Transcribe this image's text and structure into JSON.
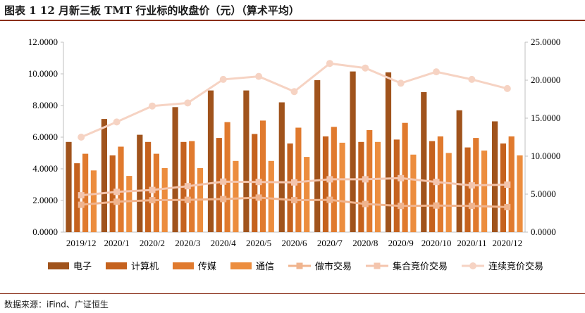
{
  "title": "图表 1 12 月新三板 TMT 行业标的收盘价（元）（算术平均）",
  "source": "数据来源：iFind、广证恒生",
  "chart_data": {
    "type": "bar",
    "categories": [
      "2019/12",
      "2020/1",
      "2020/2",
      "2020/3",
      "2020/4",
      "2020/5",
      "2020/6",
      "2020/7",
      "2020/8",
      "2020/9",
      "2020/10",
      "2020/11",
      "2020/12"
    ],
    "left_axis": {
      "ylim": [
        0,
        12
      ],
      "ticks": [
        "0.0000",
        "2.0000",
        "4.0000",
        "6.0000",
        "8.0000",
        "10.0000",
        "12.0000"
      ]
    },
    "right_axis": {
      "ylim": [
        0,
        25
      ],
      "ticks": [
        "0.0000",
        "5.0000",
        "10.0000",
        "15.0000",
        "20.0000",
        "25.0000"
      ]
    },
    "bar_series": [
      {
        "name": "电子",
        "color": "#a0531c",
        "values": [
          5.7,
          7.15,
          6.15,
          7.9,
          8.95,
          8.95,
          8.2,
          9.6,
          10.15,
          10.1,
          8.85,
          7.7,
          7.0
        ]
      },
      {
        "name": "计算机",
        "color": "#c5621e",
        "values": [
          4.35,
          4.85,
          5.7,
          5.7,
          5.95,
          6.2,
          5.6,
          6.05,
          5.7,
          5.85,
          5.75,
          5.35,
          5.6
        ]
      },
      {
        "name": "传媒",
        "color": "#e07a2e",
        "values": [
          4.95,
          5.4,
          4.95,
          5.75,
          6.95,
          7.05,
          6.6,
          6.65,
          6.45,
          6.9,
          6.05,
          5.95,
          6.05
        ]
      },
      {
        "name": "通信",
        "color": "#ec8d3e",
        "values": [
          3.9,
          3.55,
          4.05,
          4.05,
          4.5,
          4.5,
          4.75,
          5.65,
          5.7,
          4.9,
          5.0,
          5.15,
          4.85
        ]
      }
    ],
    "line_series": [
      {
        "name": "做市交易",
        "color": "#f0b48e",
        "marker": "square",
        "values": [
          3.6,
          4.0,
          4.2,
          4.25,
          4.35,
          4.55,
          4.2,
          4.25,
          3.7,
          3.45,
          3.5,
          3.45,
          3.3
        ]
      },
      {
        "name": "集合竞价交易",
        "color": "#f4c5ad",
        "marker": "square",
        "values": [
          4.85,
          5.3,
          5.55,
          6.05,
          6.65,
          6.6,
          6.55,
          6.95,
          6.95,
          7.1,
          6.6,
          6.15,
          6.25
        ]
      },
      {
        "name": "连续竞价交易",
        "color": "#f6d3c3",
        "marker": "circle",
        "values": [
          12.5,
          14.5,
          16.6,
          17.0,
          20.1,
          20.5,
          18.5,
          22.2,
          21.6,
          19.6,
          21.1,
          20.1,
          18.9
        ]
      }
    ],
    "legend_position": "bottom",
    "grid": false
  }
}
